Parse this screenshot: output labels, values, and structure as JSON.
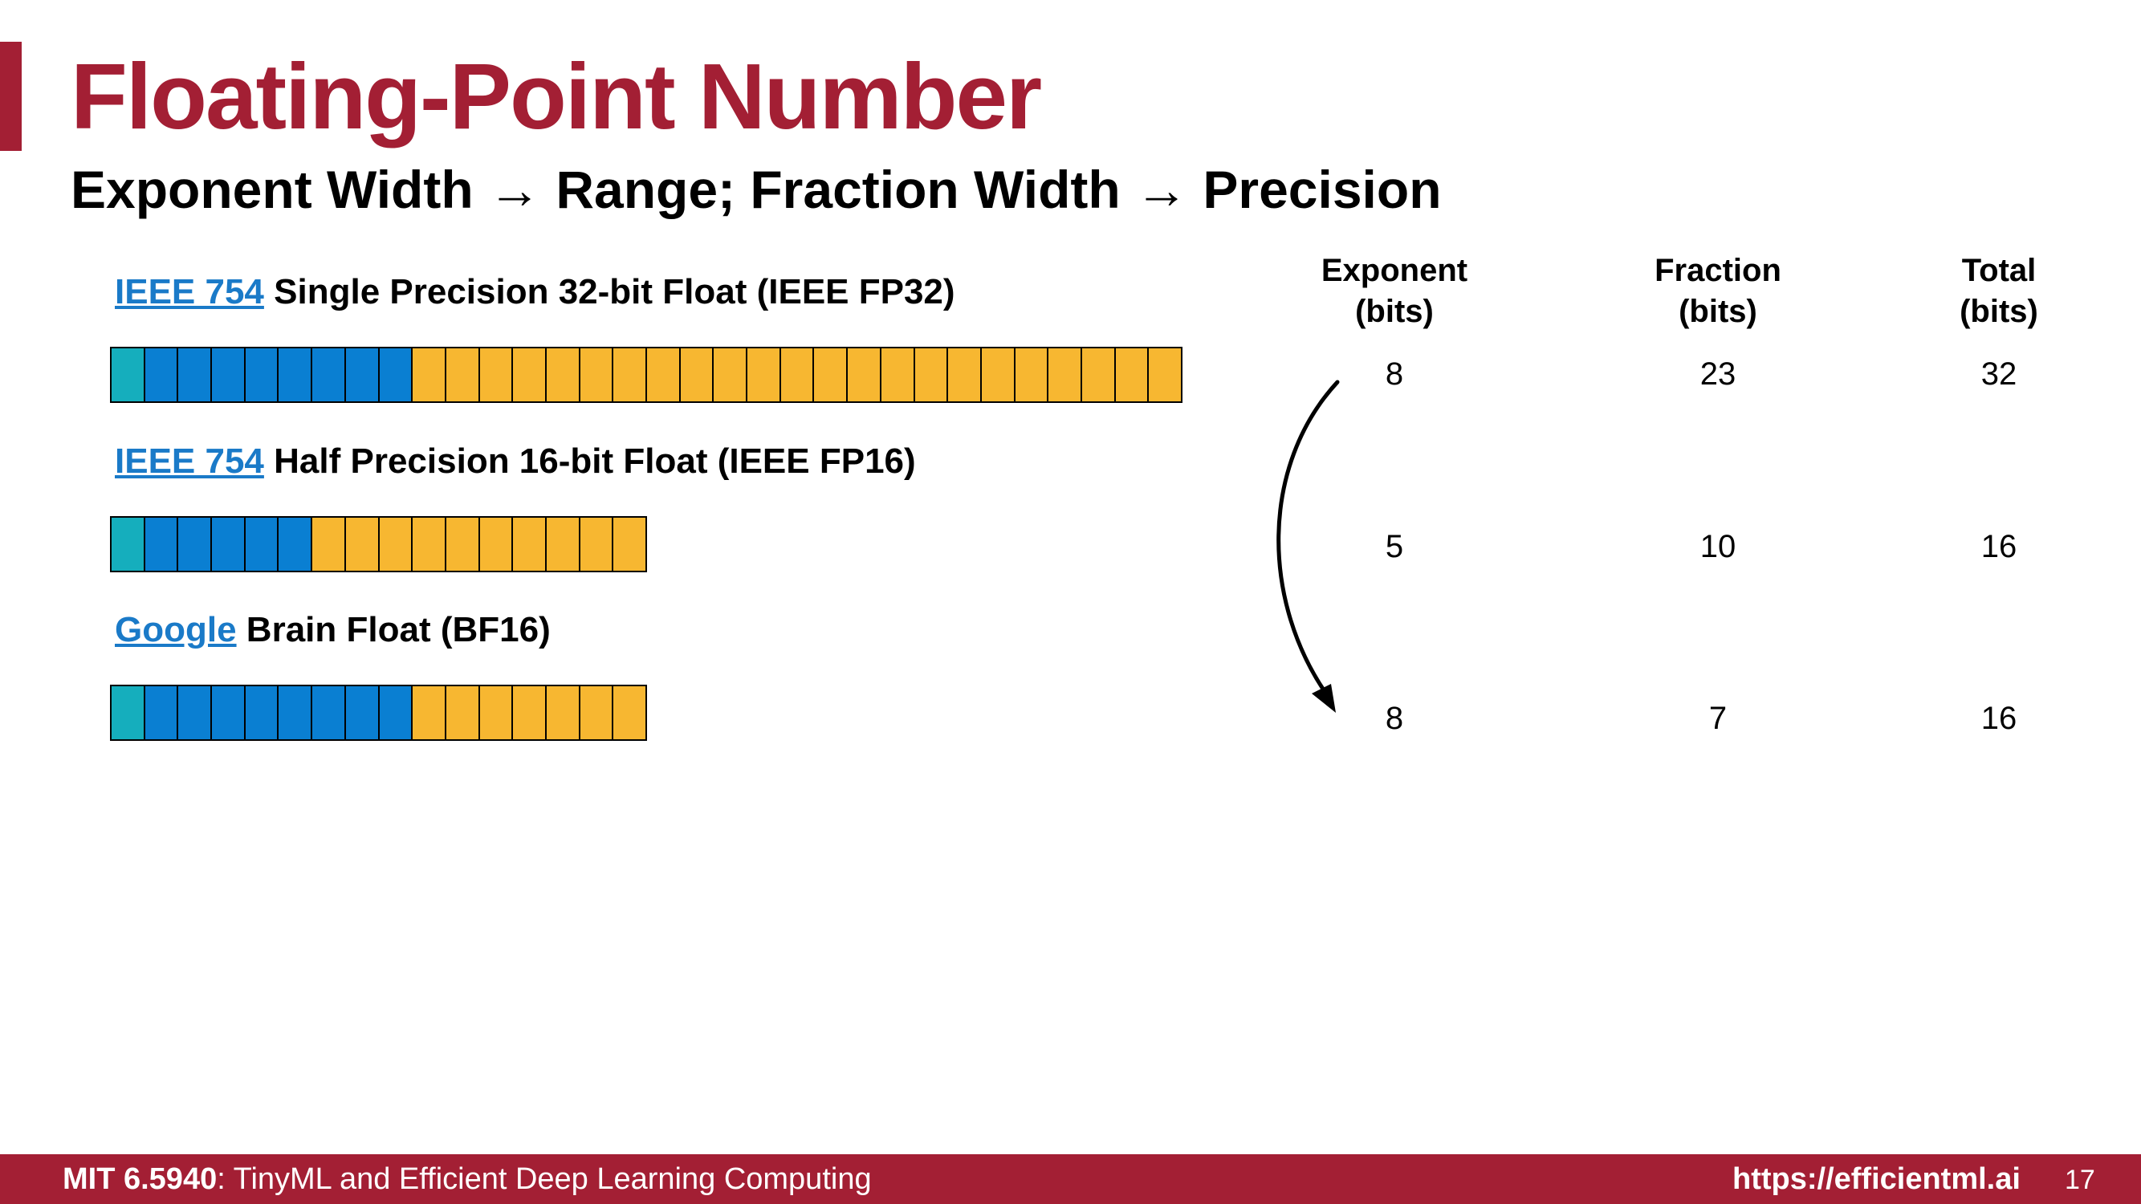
{
  "slide": {
    "title": "Floating-Point Number",
    "subtitle": "Exponent Width → Range; Fraction Width → Precision"
  },
  "formats": [
    {
      "link": "IEEE 754",
      "name": "Single Precision 32-bit Float (IEEE FP32)",
      "sign": 1,
      "exponent": 8,
      "fraction": 23
    },
    {
      "link": "IEEE 754",
      "name": "Half Precision 16-bit Float (IEEE FP16)",
      "sign": 1,
      "exponent": 5,
      "fraction": 10
    },
    {
      "link": "Google",
      "name": "Brain Float (BF16)",
      "sign": 1,
      "exponent": 8,
      "fraction": 7
    }
  ],
  "table": {
    "headers": [
      {
        "line1": "Exponent",
        "line2": "(bits)"
      },
      {
        "line1": "Fraction",
        "line2": "(bits)"
      },
      {
        "line1": "Total",
        "line2": "(bits)"
      }
    ],
    "rows": [
      [
        "8",
        "23",
        "32"
      ],
      [
        "5",
        "10",
        "16"
      ],
      [
        "8",
        "7",
        "16"
      ]
    ]
  },
  "colors": {
    "brand": "#a31f34",
    "sign_bit": "#15aebd",
    "exponent_bit": "#0a7fd2",
    "fraction_bit": "#f7b731",
    "link": "#1a7ac8"
  },
  "footer": {
    "course_code": "MIT 6.5940",
    "course_name": ": TinyML and Efficient Deep Learning Computing",
    "url": "https://efficientml.ai",
    "page": "17"
  }
}
